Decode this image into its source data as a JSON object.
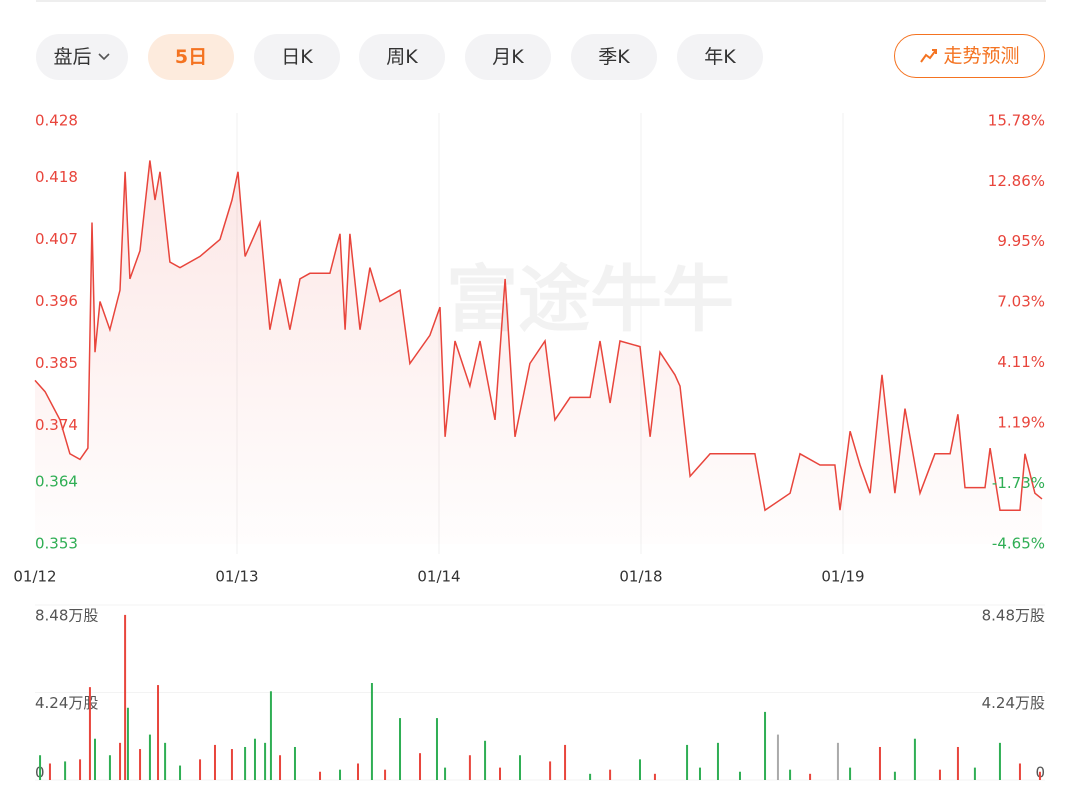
{
  "tabs": [
    "盘后",
    "5日",
    "日K",
    "周K",
    "月K",
    "季K",
    "年K"
  ],
  "active_tab": 1,
  "forecast_button": "走势预测",
  "watermark": "富途牛牛",
  "chart_data": [
    {
      "type": "line",
      "x": [
        0,
        0.05,
        0.124,
        0.173,
        0.223,
        0.262,
        0.282,
        0.297,
        0.322,
        0.371,
        0.421,
        0.446,
        0.47,
        0.52,
        0.569,
        0.594,
        0.619,
        0.668,
        0.718,
        0.817,
        0.916,
        0.975,
        1.005,
        1.04,
        1.114,
        1.163,
        1.213,
        1.262,
        1.312,
        1.361,
        1.46,
        1.51,
        1.535,
        1.559,
        1.609,
        1.658,
        1.708,
        1.807,
        1.856,
        1.955,
        2.005,
        2.03,
        2.079,
        2.153,
        2.203,
        2.277,
        2.327,
        2.376,
        2.45,
        2.525,
        2.574,
        2.649,
        2.748,
        2.797,
        2.847,
        2.896,
        2.995,
        3.045,
        3.094,
        3.168,
        3.193,
        3.243,
        3.342,
        3.441,
        3.564,
        3.614,
        3.738,
        3.787,
        3.886,
        3.96,
        3.985,
        4.035,
        4.084,
        4.134,
        4.193,
        4.257,
        4.307,
        4.381,
        4.455,
        4.53,
        4.569,
        4.604,
        4.703,
        4.728,
        4.777,
        4.876,
        4.901,
        4.95,
        4.985
      ],
      "series": [
        {
          "color": "#e8453c",
          "values": [
            0.382,
            0.38,
            0.375,
            0.369,
            0.368,
            0.37,
            0.41,
            0.387,
            0.396,
            0.391,
            0.398,
            0.419,
            0.4,
            0.405,
            0.421,
            0.414,
            0.419,
            0.403,
            0.402,
            0.404,
            0.407,
            0.414,
            0.419,
            0.404,
            0.41,
            0.391,
            0.4,
            0.391,
            0.4,
            0.401,
            0.401,
            0.408,
            0.391,
            0.408,
            0.391,
            0.402,
            0.396,
            0.398,
            0.385,
            0.39,
            0.395,
            0.372,
            0.389,
            0.381,
            0.389,
            0.375,
            0.4,
            0.372,
            0.385,
            0.389,
            0.375,
            0.379,
            0.379,
            0.389,
            0.378,
            0.389,
            0.388,
            0.372,
            0.387,
            0.383,
            0.381,
            0.365,
            0.369,
            0.369,
            0.369,
            0.359,
            0.362,
            0.369,
            0.367,
            0.367,
            0.359,
            0.373,
            0.367,
            0.362,
            0.383,
            0.362,
            0.377,
            0.362,
            0.369,
            0.369,
            0.376,
            0.363,
            0.363,
            0.37,
            0.359,
            0.359,
            0.369,
            0.362,
            0.361
          ]
        }
      ],
      "xlim": [
        0,
        5
      ],
      "xticks": [
        {
          "value": 0,
          "label": "01/12"
        },
        {
          "value": 1,
          "label": "01/13"
        },
        {
          "value": 2,
          "label": "01/14"
        },
        {
          "value": 3,
          "label": "01/18"
        },
        {
          "value": 4,
          "label": "01/19"
        }
      ],
      "ylim": [
        0.353,
        0.428
      ],
      "yticks": [
        0.428,
        0.418,
        0.407,
        0.396,
        0.385,
        0.374,
        0.364,
        0.353
      ],
      "y2lim": [
        -4.65,
        15.78
      ],
      "y2ticks": [
        {
          "value": 15.78,
          "label": "15.78%"
        },
        {
          "value": 12.86,
          "label": "12.86%"
        },
        {
          "value": 9.95,
          "label": "9.95%"
        },
        {
          "value": 7.03,
          "label": "7.03%"
        },
        {
          "value": 4.11,
          "label": "4.11%"
        },
        {
          "value": 1.19,
          "label": "1.19%"
        },
        {
          "value": -1.73,
          "label": "-1.73%"
        },
        {
          "value": -4.65,
          "label": "-4.65%"
        }
      ],
      "up_color": "#e8453c",
      "down_color": "#2fae54",
      "grid": true
    },
    {
      "type": "bar",
      "x": [
        0.025,
        0.074,
        0.149,
        0.223,
        0.272,
        0.297,
        0.371,
        0.421,
        0.446,
        0.46,
        0.52,
        0.569,
        0.609,
        0.644,
        0.718,
        0.817,
        0.891,
        0.975,
        1.04,
        1.089,
        1.139,
        1.168,
        1.213,
        1.287,
        1.411,
        1.51,
        1.599,
        1.668,
        1.733,
        1.807,
        1.906,
        1.99,
        2.03,
        2.153,
        2.228,
        2.302,
        2.401,
        2.55,
        2.624,
        2.748,
        2.847,
        2.995,
        3.069,
        3.228,
        3.292,
        3.381,
        3.49,
        3.614,
        3.678,
        3.738,
        3.837,
        3.975,
        4.035,
        4.183,
        4.257,
        4.356,
        4.48,
        4.569,
        4.653,
        4.777,
        4.876,
        4.975
      ],
      "values": [
        1.2,
        0.8,
        0.9,
        1.0,
        4.5,
        2.0,
        1.2,
        1.8,
        8.0,
        3.5,
        1.5,
        2.2,
        4.6,
        1.8,
        0.7,
        1.0,
        1.7,
        1.5,
        1.6,
        2.0,
        1.8,
        4.3,
        1.2,
        1.6,
        0.4,
        0.5,
        0.8,
        4.7,
        0.5,
        3.0,
        1.3,
        3.0,
        0.6,
        1.2,
        1.9,
        0.6,
        1.2,
        0.9,
        1.7,
        0.3,
        0.5,
        1.0,
        0.3,
        1.7,
        0.6,
        1.8,
        0.4,
        3.3,
        2.2,
        0.5,
        0.3,
        1.8,
        0.6,
        1.6,
        0.4,
        2.0,
        0.5,
        1.6,
        0.6,
        1.8,
        0.8,
        0.4
      ],
      "colors": [
        "#2fae54",
        "#e8453c",
        "#2fae54",
        "#e8453c",
        "#e8453c",
        "#2fae54",
        "#2fae54",
        "#e8453c",
        "#e8453c",
        "#2fae54",
        "#e8453c",
        "#2fae54",
        "#e8453c",
        "#2fae54",
        "#2fae54",
        "#e8453c",
        "#e8453c",
        "#e8453c",
        "#2fae54",
        "#2fae54",
        "#2fae54",
        "#2fae54",
        "#e8453c",
        "#2fae54",
        "#e8453c",
        "#2fae54",
        "#e8453c",
        "#2fae54",
        "#e8453c",
        "#2fae54",
        "#e8453c",
        "#2fae54",
        "#2fae54",
        "#e8453c",
        "#2fae54",
        "#e8453c",
        "#2fae54",
        "#e8453c",
        "#e8453c",
        "#2fae54",
        "#e8453c",
        "#2fae54",
        "#e8453c",
        "#2fae54",
        "#2fae54",
        "#2fae54",
        "#2fae54",
        "#2fae54",
        "#aaaaaa",
        "#2fae54",
        "#e8453c",
        "#aaaaaa",
        "#2fae54",
        "#e8453c",
        "#2fae54",
        "#2fae54",
        "#e8453c",
        "#e8453c",
        "#2fae54",
        "#2fae54",
        "#e8453c",
        "#e8453c"
      ],
      "xlim": [
        0,
        5
      ],
      "ylim": [
        0,
        8.48
      ],
      "yticks": [
        0,
        {
          "value": 4.24,
          "label": "4.24万股"
        },
        {
          "value": 8.48,
          "label": "8.48万股"
        }
      ]
    }
  ]
}
